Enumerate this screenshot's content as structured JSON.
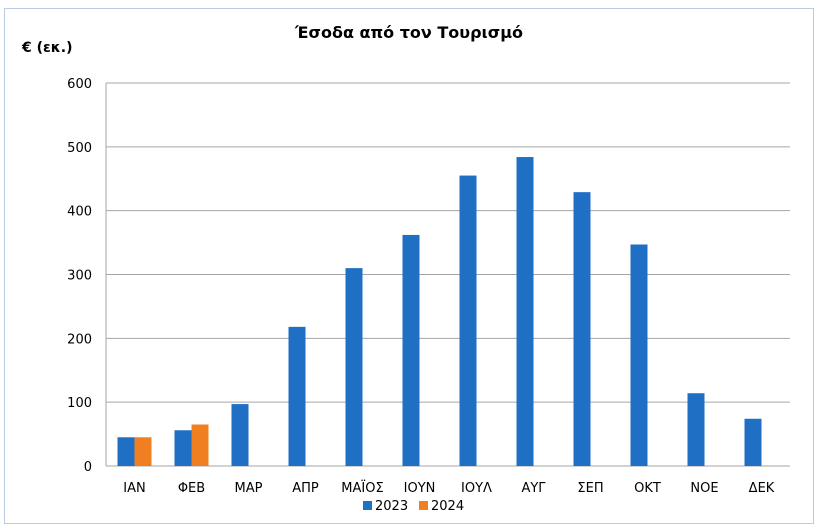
{
  "chart_data": {
    "type": "bar",
    "title": "Έσοδα από τον Τουρισμό",
    "ylabel": "€ (εκ.)",
    "xlabel": "",
    "categories": [
      "ΙΑΝ",
      "ΦΕΒ",
      "ΜΑΡ",
      "ΑΠΡ",
      "ΜΑΪΟΣ",
      "ΙΟΥΝ",
      "ΙΟΥΛ",
      "ΑΥΓ",
      "ΣΕΠ",
      "ΟΚΤ",
      "ΝΟΕ",
      "ΔΕΚ"
    ],
    "series": [
      {
        "name": "2023",
        "color": "#1f6fc5",
        "values": [
          45,
          56,
          97,
          218,
          310,
          362,
          455,
          484,
          429,
          347,
          114,
          74
        ]
      },
      {
        "name": "2024",
        "color": "#f07f22",
        "values": [
          45,
          65,
          null,
          null,
          null,
          null,
          null,
          null,
          null,
          null,
          null,
          null
        ]
      }
    ],
    "ylim": [
      0,
      600
    ],
    "yticks": [
      0,
      100,
      200,
      300,
      400,
      500,
      600
    ],
    "grid": true,
    "legend": "bottom-center",
    "gridColor": "#a6a6a6"
  }
}
